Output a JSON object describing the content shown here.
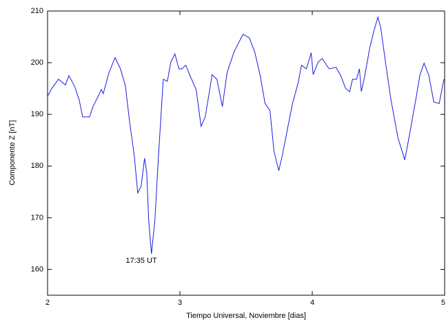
{
  "chart_data": {
    "type": "line",
    "xlabel": "Tiempo Universal, Noviembre [dias]",
    "ylabel": "Componente Z [nT]",
    "annotation": "17:35 UT",
    "color": "#1a1ae0",
    "xlim": [
      2,
      5
    ],
    "xticks": [
      2,
      3,
      4,
      5
    ],
    "ylim": [
      155,
      210
    ],
    "yticks": [
      160,
      170,
      180,
      190,
      200,
      210
    ],
    "x": [
      2.0,
      2.031,
      2.083,
      2.135,
      2.161,
      2.203,
      2.239,
      2.265,
      2.317,
      2.343,
      2.369,
      2.406,
      2.421,
      2.463,
      2.51,
      2.551,
      2.588,
      2.619,
      2.655,
      2.681,
      2.707,
      2.733,
      2.749,
      2.764,
      2.785,
      2.811,
      2.837,
      2.874,
      2.905,
      2.931,
      2.962,
      2.993,
      3.014,
      3.045,
      3.076,
      3.123,
      3.16,
      3.191,
      3.217,
      3.243,
      3.279,
      3.321,
      3.357,
      3.409,
      3.477,
      3.524,
      3.565,
      3.607,
      3.643,
      3.68,
      3.711,
      3.747,
      3.773,
      3.815,
      3.851,
      3.893,
      3.919,
      3.955,
      3.992,
      4.007,
      4.044,
      4.075,
      4.127,
      4.179,
      4.215,
      4.252,
      4.283,
      4.304,
      4.335,
      4.356,
      4.371,
      4.397,
      4.434,
      4.465,
      4.496,
      4.517,
      4.553,
      4.595,
      4.647,
      4.699,
      4.735,
      4.777,
      4.814,
      4.845,
      4.881,
      4.918,
      4.959,
      4.995
    ],
    "values": [
      193.5,
      195,
      196.8,
      195.7,
      197.5,
      195.5,
      192.8,
      189.5,
      189.5,
      191.5,
      192.8,
      194.8,
      194,
      198,
      201,
      198.8,
      195.5,
      188.8,
      182,
      174.8,
      176.1,
      181.5,
      178.8,
      169.5,
      163,
      169.5,
      181.5,
      196.8,
      196.4,
      200.1,
      201.7,
      198.8,
      198.8,
      199.5,
      197.5,
      194.8,
      187.7,
      189.5,
      193.5,
      197.7,
      196.8,
      191.5,
      198.1,
      202.1,
      205.5,
      204.8,
      202.1,
      197.5,
      192.1,
      190.8,
      182.8,
      179.1,
      182,
      187.5,
      192.1,
      196.1,
      199.5,
      198.8,
      201.9,
      197.7,
      200.1,
      200.8,
      198.8,
      199.1,
      197.5,
      195,
      194.4,
      196.8,
      196.8,
      198.8,
      194.4,
      197.5,
      202.8,
      206.1,
      208.8,
      206.8,
      200.1,
      192.8,
      185.5,
      181.2,
      186.1,
      192.1,
      197.7,
      199.9,
      197.5,
      192.4,
      192.1,
      196.8
    ]
  }
}
